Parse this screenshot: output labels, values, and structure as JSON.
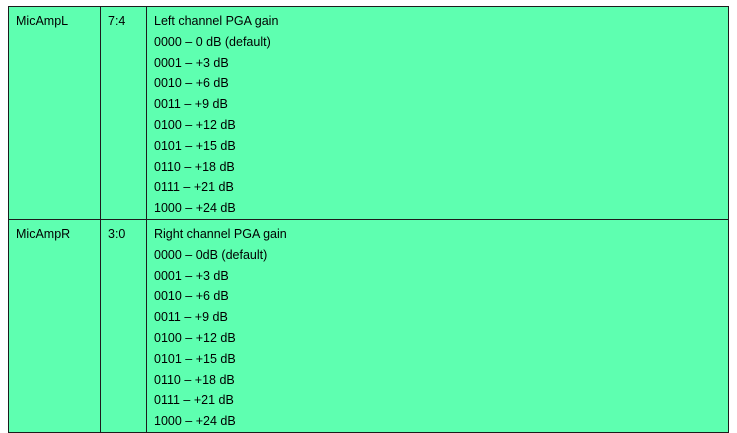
{
  "rows": [
    {
      "name": "MicAmpL",
      "bits": "7:4",
      "description": "Left channel PGA gain",
      "options": [
        "0000 – 0 dB (default)",
        "0001 – +3 dB",
        "0010 – +6 dB",
        "0011 – +9 dB",
        "0100 – +12 dB",
        "0101 – +15 dB",
        "0110 – +18 dB",
        "0111 – +21 dB",
        "1000 – +24 dB"
      ]
    },
    {
      "name": "MicAmpR",
      "bits": "3:0",
      "description": "Right channel PGA gain",
      "options": [
        "0000 – 0dB (default)",
        "0001 – +3 dB",
        "0010 – +6 dB",
        "0011 – +9 dB",
        "0100 – +12 dB",
        "0101 – +15 dB",
        "0110 – +18 dB",
        "0111 – +21 dB",
        "1000 – +24 dB"
      ]
    }
  ],
  "colors": {
    "table_background": "#5effb0",
    "border": "#1c1c1c"
  }
}
